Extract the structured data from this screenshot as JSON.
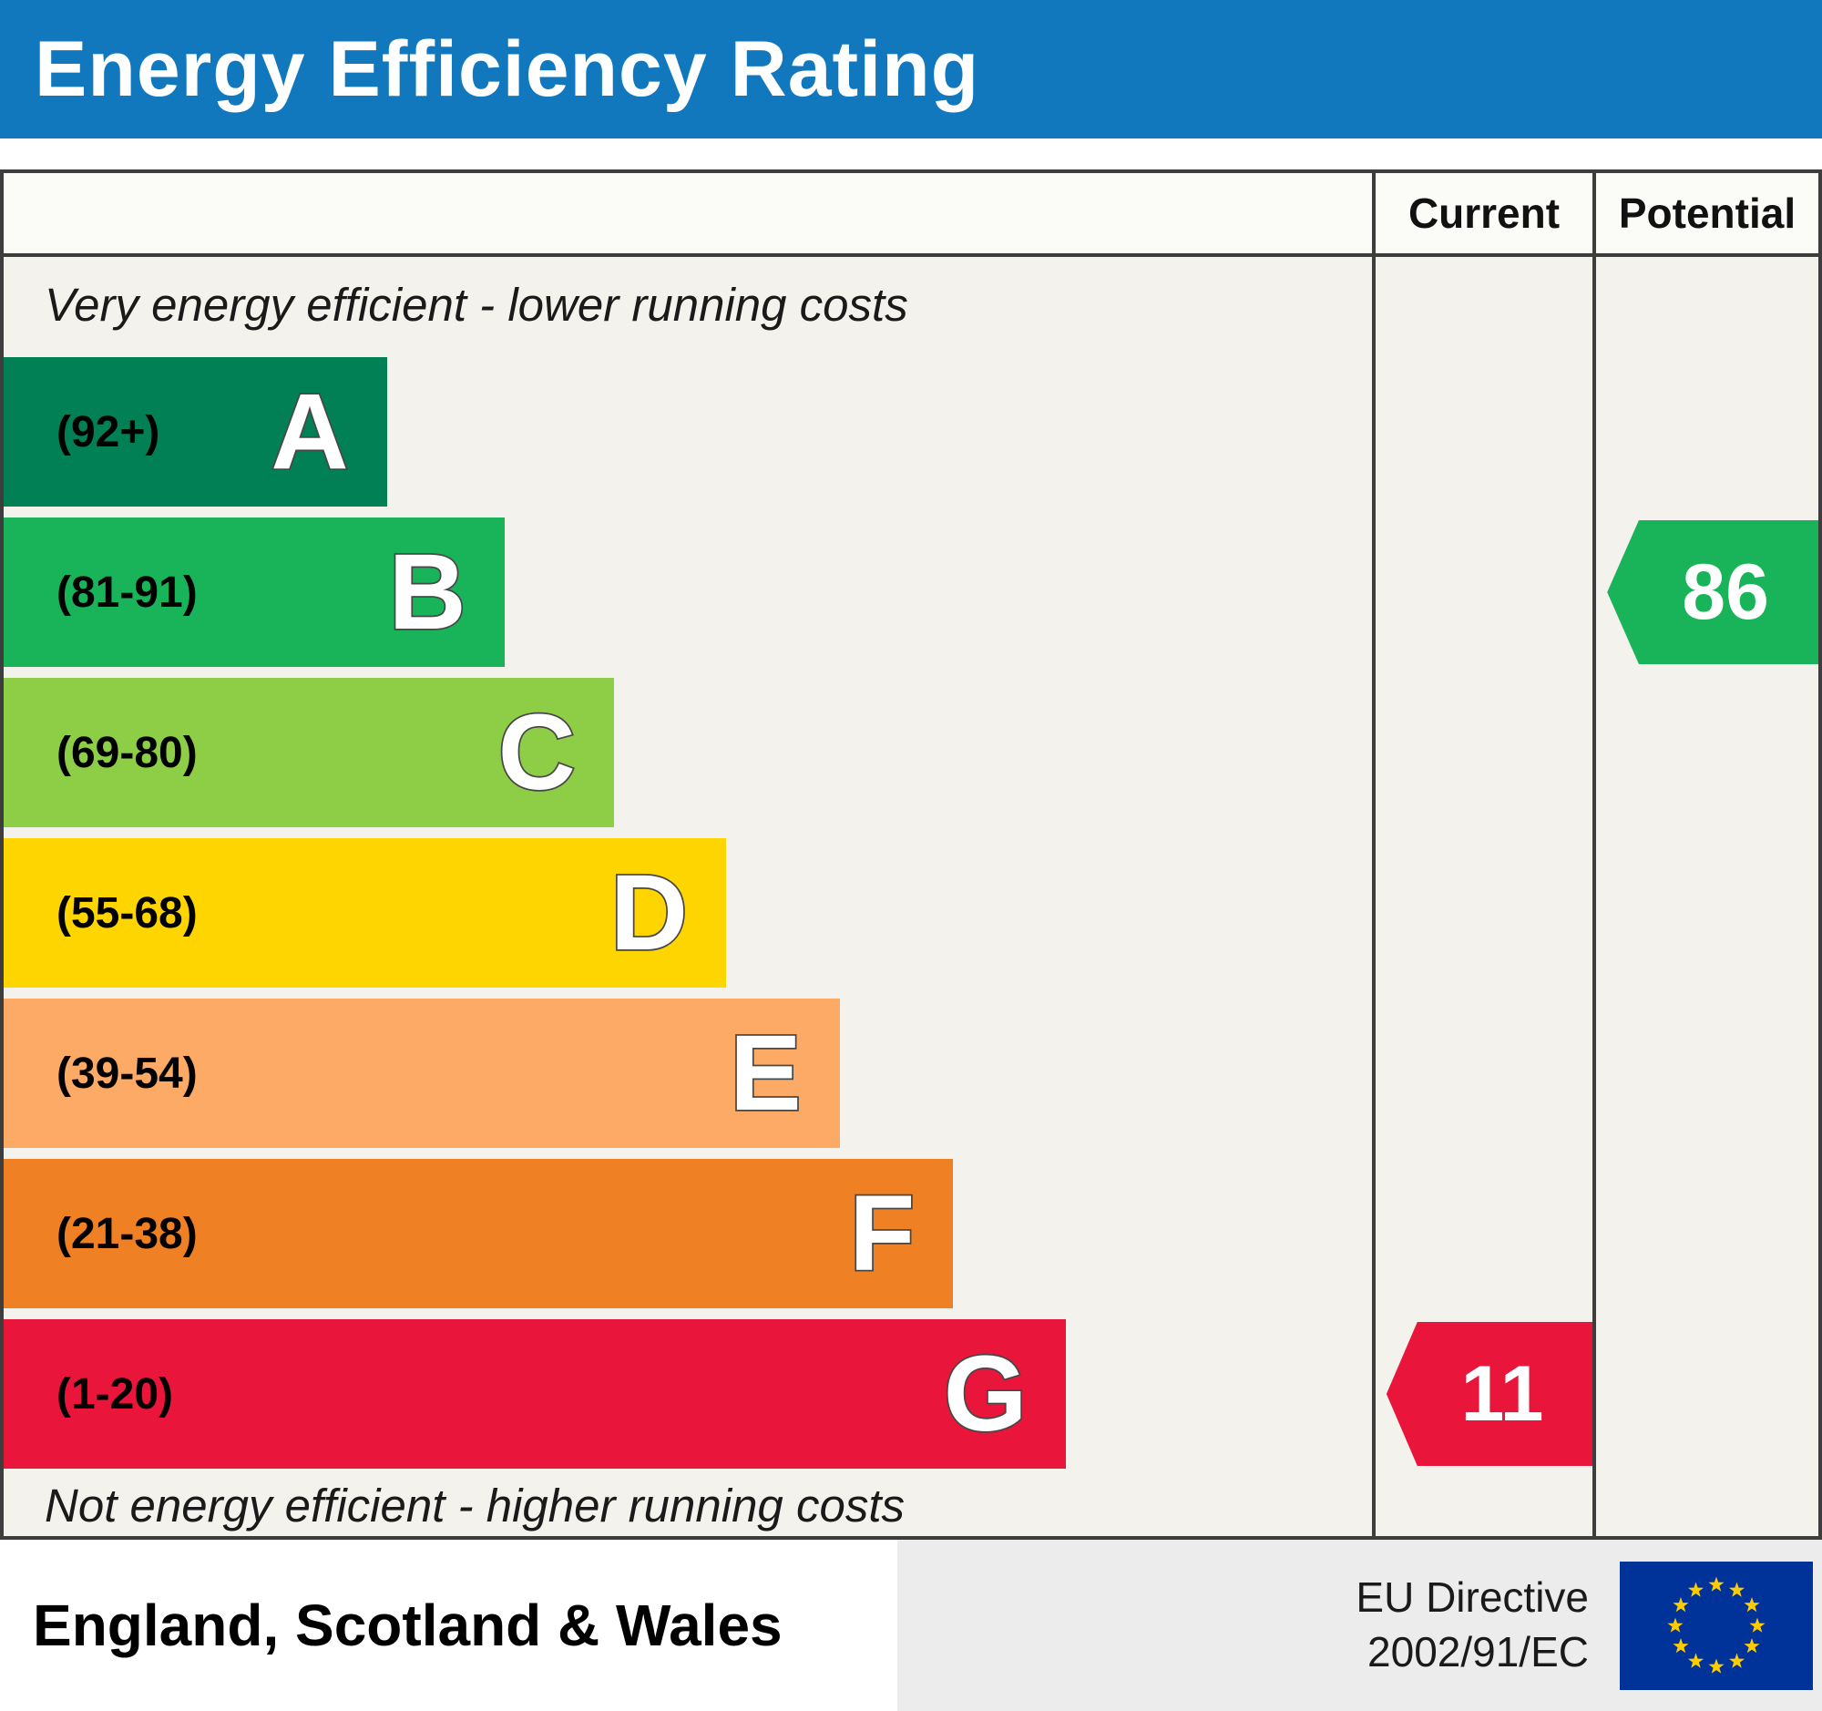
{
  "title": "Energy Efficiency Rating",
  "columns": {
    "current": "Current",
    "potential": "Potential"
  },
  "top_note": "Very energy efficient - lower running costs",
  "bottom_note": "Not energy efficient - higher running costs",
  "footer": {
    "region": "England, Scotland & Wales",
    "directive_line1": "EU Directive",
    "directive_line2": "2002/91/EC",
    "eu_flag_icon": "eu-flag"
  },
  "colors": {
    "header_bg": "#1278be",
    "border": "#3d3d3d",
    "current_arrow": "#e9153b",
    "potential_arrow": "#19b459"
  },
  "chart_data": {
    "type": "bar",
    "title": "Energy Efficiency Rating",
    "bands": [
      {
        "label": "A",
        "range": "(92+)",
        "color": "#008054",
        "width_pct": 28.0
      },
      {
        "label": "B",
        "range": "(81-91)",
        "color": "#19b459",
        "width_pct": 36.6
      },
      {
        "label": "C",
        "range": "(69-80)",
        "color": "#8dce46",
        "width_pct": 44.6
      },
      {
        "label": "D",
        "range": "(55-68)",
        "color": "#ffd500",
        "width_pct": 52.8
      },
      {
        "label": "E",
        "range": "(39-54)",
        "color": "#fcaa65",
        "width_pct": 61.1
      },
      {
        "label": "F",
        "range": "(21-38)",
        "color": "#ef8023",
        "width_pct": 69.4
      },
      {
        "label": "G",
        "range": "(1-20)",
        "color": "#e9153b",
        "width_pct": 77.6
      }
    ],
    "current": {
      "value": 11,
      "band": "G",
      "color": "#e9153b"
    },
    "potential": {
      "value": 86,
      "band": "B",
      "color": "#19b459"
    }
  }
}
